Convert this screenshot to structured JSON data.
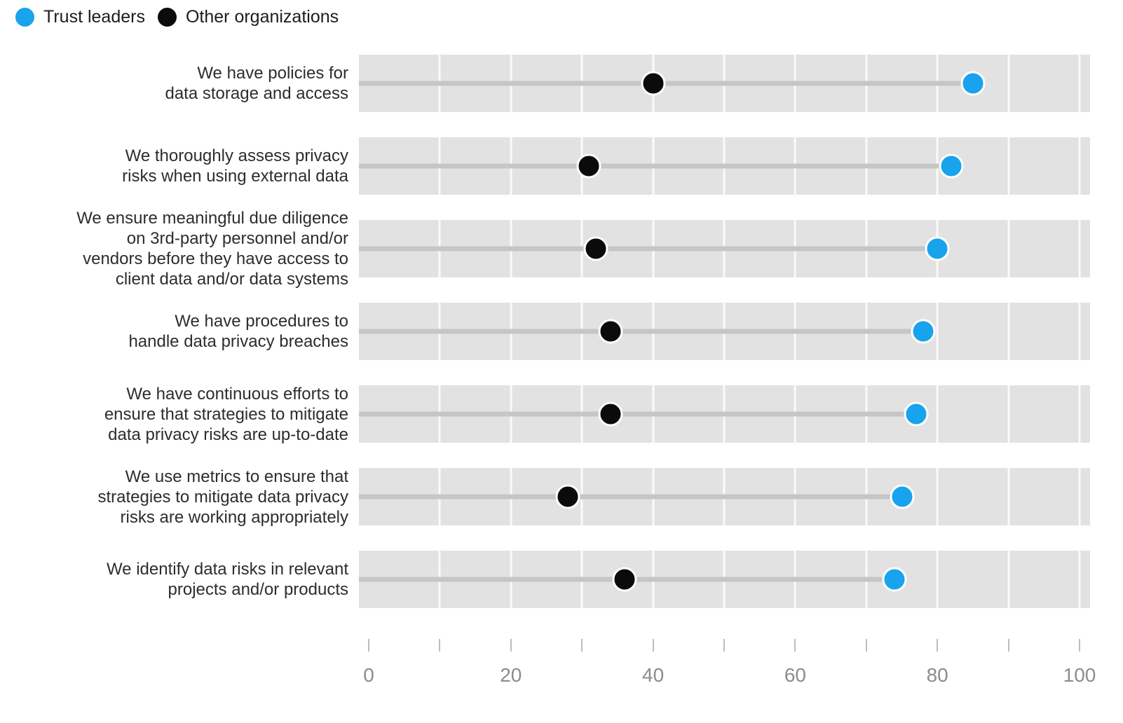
{
  "legend": {
    "items": [
      {
        "label": "Trust leaders",
        "color": "#18a3ec"
      },
      {
        "label": "Other organizations",
        "color": "#0b0b0b"
      }
    ]
  },
  "chart_data": {
    "type": "scatter",
    "variant": "dumbbell",
    "orientation": "horizontal",
    "categories": [
      "We have policies for\ndata storage and access",
      "We thoroughly assess privacy\nrisks when using external data",
      "We ensure meaningful due diligence\non 3rd-party personnel and/or\nvendors before they have access to\nclient data and/or data systems",
      "We have procedures to\nhandle data privacy breaches",
      "We have continuous efforts to\nensure that strategies to mitigate\ndata privacy risks are up-to-date",
      "We use metrics to ensure that\nstrategies to mitigate data privacy\nrisks are working appropriately",
      "We identify data risks in relevant\nprojects and/or products"
    ],
    "series": [
      {
        "name": "Trust leaders",
        "color": "#18a3ec",
        "values": [
          85,
          82,
          80,
          78,
          77,
          75,
          74
        ]
      },
      {
        "name": "Other organizations",
        "color": "#0b0b0b",
        "values": [
          40,
          31,
          32,
          34,
          34,
          28,
          36
        ]
      }
    ],
    "xlim": [
      0,
      100
    ],
    "xticks": [
      0,
      10,
      20,
      30,
      40,
      50,
      60,
      70,
      80,
      90,
      100
    ],
    "labeled_xticks": [
      0,
      20,
      40,
      60,
      80,
      100
    ],
    "grid": true,
    "legend_position": "top-left"
  }
}
